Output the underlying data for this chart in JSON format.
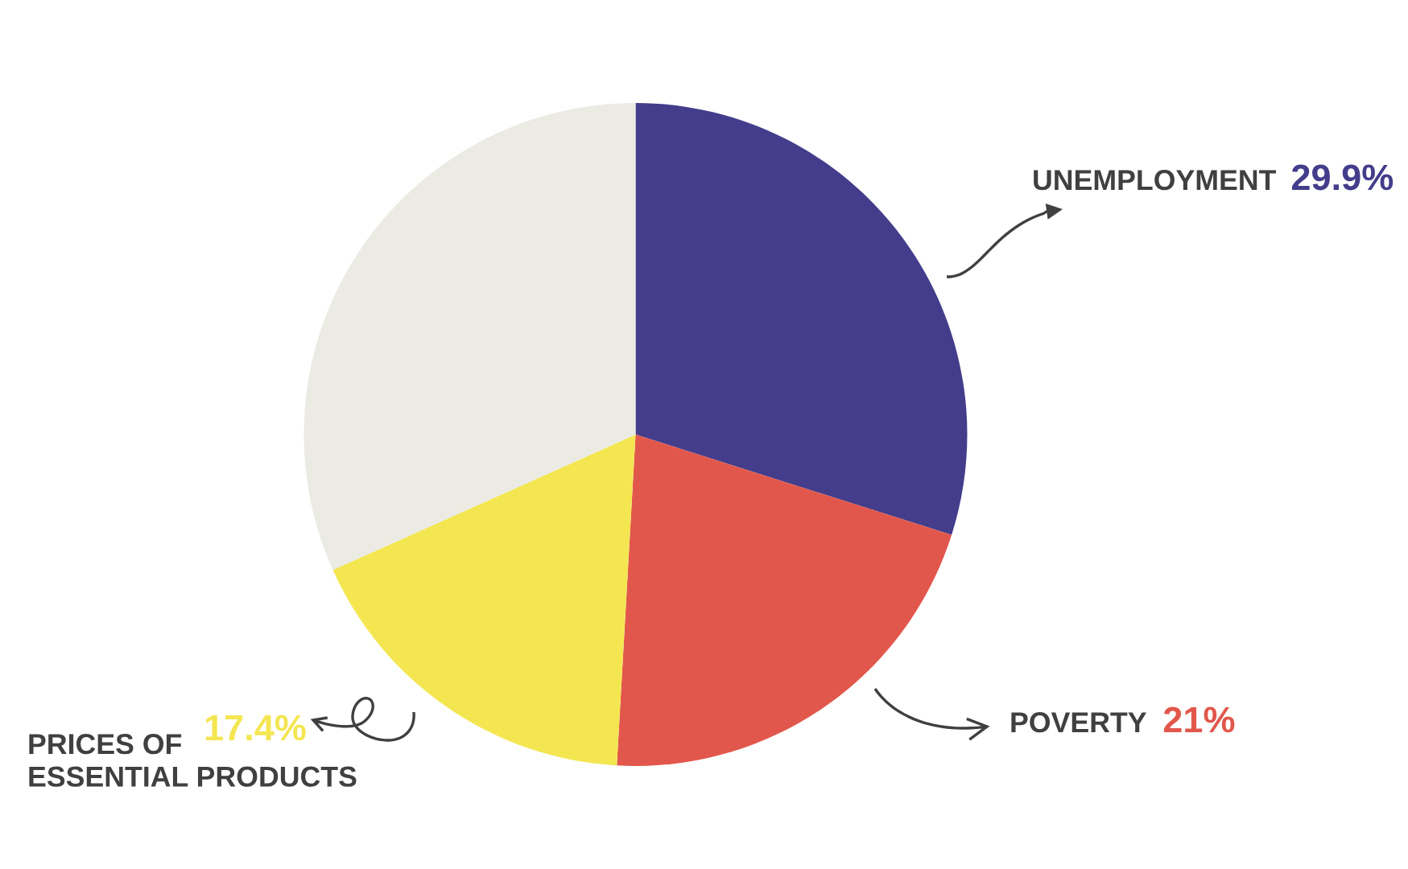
{
  "chart_data": {
    "type": "pie",
    "categories": [
      "UNEMPLOYMENT",
      "POVERTY",
      "PRICES OF ESSENTIAL PRODUCTS",
      null
    ],
    "values": [
      29.9,
      21,
      17.4,
      31.7
    ],
    "value_labels": [
      "29.9%",
      "21%",
      "17.4%",
      null
    ],
    "colors": [
      "#433d8b",
      "#e2574c",
      "#f4e651",
      "#ebebe4"
    ]
  }
}
